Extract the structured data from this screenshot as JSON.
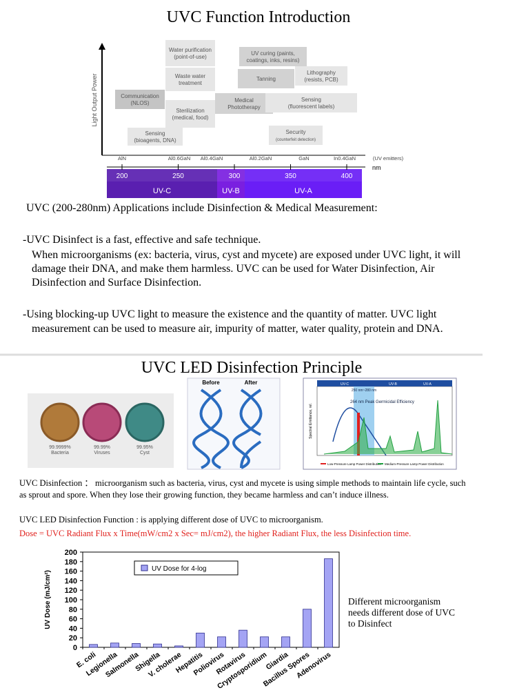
{
  "section1": {
    "title": "UVC Function Introduction",
    "figure": {
      "y_label": "Light Output Power",
      "unit": "nm",
      "emitters": "(UV emitters)",
      "materials": [
        "AlN",
        "Al0.6GaN",
        "Al0.4GaN",
        "Al0.2GaN",
        "GaN",
        "In0.4GaN"
      ],
      "ticks": [
        200,
        250,
        300,
        350,
        400
      ],
      "bands": [
        "UV-C",
        "UV-B",
        "UV-A"
      ],
      "applications": [
        [
          "Water purification",
          "(point-of-use)"
        ],
        [
          "Waste water",
          "treatment"
        ],
        [
          "Communication",
          "(NLOS)"
        ],
        [
          "Sterilization",
          "(medical, food)"
        ],
        [
          "Sensing",
          "(bioagents, DNA)"
        ],
        [
          "UV curing (paints,",
          "coatings, inks, resins)"
        ],
        [
          "Tanning"
        ],
        [
          "Lithography",
          "(resists, PCB)"
        ],
        [
          "Medical",
          "Phototherapy"
        ],
        [
          "Sensing",
          "(fluorescent labels)"
        ],
        [
          "Security",
          "(counterfeit detection)"
        ]
      ]
    },
    "paragraphs": [
      [
        "UVC (200-280nm) Applications include Disinfection & Medical Measurement:"
      ],
      [
        "-UVC Disinfect is a fast, effective and safe technique.",
        "When microorganisms (ex: bacteria, virus, cyst and mycete) are exposed under UVC light, it will",
        "damage their DNA, and make them harmless. UVC can be used for Water Disinfection, Air",
        "Disinfection and Surface Disinfection."
      ],
      [
        "-Using blocking-up UVC light to measure the existence and the quantity of matter. UVC light",
        "measurement can be used to measure air, impurity of matter, water quality, protein and DNA."
      ]
    ]
  },
  "section2": {
    "title": "UVC LED Disinfection Principle",
    "microbes": [
      [
        "99.9999%",
        "Bacteria"
      ],
      [
        "99.99%",
        "Viruses"
      ],
      [
        "99.95%",
        "Cyst"
      ]
    ],
    "dna": [
      "Before",
      "After"
    ],
    "spectrum": {
      "bands": [
        "UV-C",
        "UV-B",
        "UV-A"
      ],
      "range": "250 nm~280 nm",
      "peak": "264 nm Peak Germicidal Efficiency",
      "y_label": "Spectral Emittance, rel.",
      "legend": [
        "Low-Pressure Lamp Power Distribution",
        "Medium-Pressure Lamp Power Distribution"
      ]
    },
    "paragraphs": [
      [
        "UVC Disinfection ： microorganism such as bacteria, virus, cyst and mycete is using simple methods to maintain life cycle, such",
        "as sprout and spore. When they lose their growing function, they became harmless and can’t induce illness."
      ],
      [
        "UVC LED Disinfection Function : is applying different dose of UVC to microorganism."
      ],
      [
        "Dose = UVC Radiant Flux x Time(mW/cm2 x Sec= mJ/cm2), the higher Radiant Flux, the less Disinfection time."
      ]
    ],
    "side_note": [
      "Different microorganism",
      "needs different dose of UVC",
      "to Disinfect"
    ]
  },
  "chart_data": {
    "type": "bar",
    "y_label": "UV Dose (mJ/cm²)",
    "categories": [
      "E. coli",
      "Legionella",
      "Salmonella",
      "Shigella",
      "V. cholerae",
      "Hepatitis",
      "Poliovirus",
      "Rotavirus",
      "Cryptosporidium",
      "Giardia",
      "Bacillus Spores",
      "Adenovirus"
    ],
    "series": [
      {
        "name": "UV Dose for 4-log",
        "color": "#a4a4f4",
        "values": [
          6,
          9,
          8,
          7,
          3,
          30,
          22,
          36,
          22,
          22,
          80,
          186
        ]
      }
    ],
    "ylim": [
      0,
      200
    ],
    "yticks": [
      0,
      20,
      40,
      60,
      80,
      100,
      120,
      140,
      160,
      180,
      200
    ]
  }
}
